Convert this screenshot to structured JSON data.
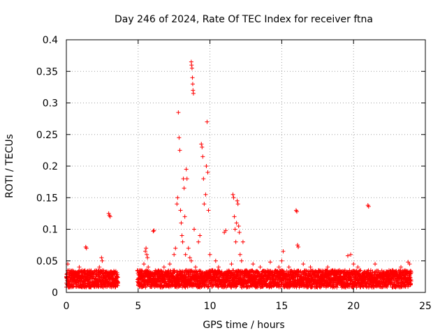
{
  "chart_data": {
    "type": "scatter",
    "title": "Day 246 of 2024, Rate Of TEC Index for receiver ftna",
    "xlabel": "GPS time / hours",
    "ylabel": "ROTI / TECUs",
    "xlim": [
      0,
      25
    ],
    "ylim": [
      0,
      0.4
    ],
    "xticks": [
      0,
      5,
      10,
      15,
      20,
      25
    ],
    "yticks": [
      0,
      0.05,
      0.1,
      0.15,
      0.2,
      0.25,
      0.3,
      0.35,
      0.4
    ],
    "xtick_labels": [
      "0",
      "5",
      "10",
      "15",
      "20",
      "25"
    ],
    "ytick_labels": [
      "0",
      "0.05",
      "0.1",
      "0.15",
      "0.2",
      "0.25",
      "0.3",
      "0.35",
      "0.4"
    ],
    "grid": true,
    "marker": "+",
    "color": "#ff0000",
    "series": [
      {
        "name": "ROTI",
        "points": [
          [
            0.0,
            0.025
          ],
          [
            0.1,
            0.045
          ],
          [
            0.2,
            0.035
          ],
          [
            0.3,
            0.02
          ],
          [
            0.5,
            0.03
          ],
          [
            0.7,
            0.015
          ],
          [
            0.9,
            0.04
          ],
          [
            1.1,
            0.025
          ],
          [
            1.3,
            0.035
          ],
          [
            1.35,
            0.072
          ],
          [
            1.4,
            0.07
          ],
          [
            1.5,
            0.02
          ],
          [
            1.7,
            0.03
          ],
          [
            1.9,
            0.015
          ],
          [
            2.1,
            0.028
          ],
          [
            2.3,
            0.04
          ],
          [
            2.45,
            0.055
          ],
          [
            2.5,
            0.05
          ],
          [
            2.7,
            0.022
          ],
          [
            2.95,
            0.125
          ],
          [
            3.0,
            0.122
          ],
          [
            3.05,
            0.12
          ],
          [
            3.1,
            0.03
          ],
          [
            3.3,
            0.018
          ],
          [
            3.5,
            0.025
          ],
          [
            5.0,
            0.02
          ],
          [
            5.2,
            0.035
          ],
          [
            5.4,
            0.045
          ],
          [
            5.5,
            0.065
          ],
          [
            5.55,
            0.07
          ],
          [
            5.6,
            0.06
          ],
          [
            5.65,
            0.055
          ],
          [
            5.7,
            0.04
          ],
          [
            5.9,
            0.03
          ],
          [
            6.05,
            0.097
          ],
          [
            6.1,
            0.098
          ],
          [
            6.2,
            0.025
          ],
          [
            6.4,
            0.035
          ],
          [
            6.6,
            0.02
          ],
          [
            6.8,
            0.04
          ],
          [
            7.0,
            0.03
          ],
          [
            7.2,
            0.045
          ],
          [
            7.4,
            0.025
          ],
          [
            7.5,
            0.06
          ],
          [
            7.6,
            0.07
          ],
          [
            7.7,
            0.14
          ],
          [
            7.75,
            0.15
          ],
          [
            7.8,
            0.285
          ],
          [
            7.85,
            0.245
          ],
          [
            7.9,
            0.225
          ],
          [
            7.95,
            0.13
          ],
          [
            8.0,
            0.11
          ],
          [
            8.05,
            0.09
          ],
          [
            8.1,
            0.08
          ],
          [
            8.15,
            0.18
          ],
          [
            8.2,
            0.165
          ],
          [
            8.25,
            0.12
          ],
          [
            8.3,
            0.06
          ],
          [
            8.35,
            0.195
          ],
          [
            8.4,
            0.18
          ],
          [
            8.5,
            0.07
          ],
          [
            8.6,
            0.055
          ],
          [
            8.7,
            0.365
          ],
          [
            8.72,
            0.36
          ],
          [
            8.75,
            0.355
          ],
          [
            8.78,
            0.34
          ],
          [
            8.8,
            0.33
          ],
          [
            8.82,
            0.32
          ],
          [
            8.85,
            0.315
          ],
          [
            8.7,
            0.05
          ],
          [
            8.9,
            0.1
          ],
          [
            9.0,
            0.04
          ],
          [
            9.2,
            0.08
          ],
          [
            9.3,
            0.09
          ],
          [
            9.4,
            0.235
          ],
          [
            9.45,
            0.23
          ],
          [
            9.5,
            0.215
          ],
          [
            9.55,
            0.18
          ],
          [
            9.6,
            0.14
          ],
          [
            9.7,
            0.155
          ],
          [
            9.75,
            0.2
          ],
          [
            9.8,
            0.27
          ],
          [
            9.85,
            0.19
          ],
          [
            9.9,
            0.13
          ],
          [
            10.0,
            0.06
          ],
          [
            10.2,
            0.035
          ],
          [
            10.4,
            0.05
          ],
          [
            10.6,
            0.04
          ],
          [
            11.0,
            0.095
          ],
          [
            11.1,
            0.098
          ],
          [
            11.3,
            0.03
          ],
          [
            11.5,
            0.045
          ],
          [
            11.6,
            0.155
          ],
          [
            11.65,
            0.15
          ],
          [
            11.7,
            0.12
          ],
          [
            11.75,
            0.1
          ],
          [
            11.8,
            0.08
          ],
          [
            11.85,
            0.11
          ],
          [
            11.9,
            0.145
          ],
          [
            11.95,
            0.14
          ],
          [
            12.0,
            0.105
          ],
          [
            12.05,
            0.095
          ],
          [
            12.1,
            0.06
          ],
          [
            12.2,
            0.05
          ],
          [
            12.3,
            0.08
          ],
          [
            12.5,
            0.035
          ],
          [
            12.7,
            0.025
          ],
          [
            13.0,
            0.045
          ],
          [
            13.2,
            0.03
          ],
          [
            13.5,
            0.04
          ],
          [
            13.8,
            0.02
          ],
          [
            14.0,
            0.035
          ],
          [
            14.2,
            0.048
          ],
          [
            14.5,
            0.03
          ],
          [
            14.8,
            0.04
          ],
          [
            15.0,
            0.05
          ],
          [
            15.1,
            0.065
          ],
          [
            15.3,
            0.025
          ],
          [
            15.5,
            0.04
          ],
          [
            15.8,
            0.03
          ],
          [
            16.0,
            0.13
          ],
          [
            16.05,
            0.128
          ],
          [
            16.1,
            0.075
          ],
          [
            16.15,
            0.072
          ],
          [
            16.3,
            0.025
          ],
          [
            16.5,
            0.045
          ],
          [
            16.7,
            0.03
          ],
          [
            17.0,
            0.04
          ],
          [
            17.3,
            0.02
          ],
          [
            17.6,
            0.035
          ],
          [
            17.9,
            0.025
          ],
          [
            18.2,
            0.04
          ],
          [
            18.5,
            0.02
          ],
          [
            18.8,
            0.03
          ],
          [
            19.1,
            0.025
          ],
          [
            19.4,
            0.035
          ],
          [
            19.6,
            0.058
          ],
          [
            19.8,
            0.06
          ],
          [
            20.0,
            0.045
          ],
          [
            20.3,
            0.04
          ],
          [
            20.6,
            0.03
          ],
          [
            21.0,
            0.138
          ],
          [
            21.05,
            0.136
          ],
          [
            21.2,
            0.035
          ],
          [
            21.5,
            0.045
          ],
          [
            21.8,
            0.025
          ],
          [
            22.1,
            0.03
          ],
          [
            22.4,
            0.02
          ],
          [
            22.7,
            0.035
          ],
          [
            23.0,
            0.025
          ],
          [
            23.3,
            0.04
          ],
          [
            23.6,
            0.03
          ],
          [
            23.8,
            0.048
          ],
          [
            23.9,
            0.045
          ],
          [
            24.0,
            0.02
          ]
        ]
      }
    ],
    "dense_band": {
      "segments": [
        [
          0.0,
          3.6
        ],
        [
          4.95,
          24.0
        ]
      ],
      "typical_min": 0.008,
      "typical_max": 0.035
    }
  }
}
